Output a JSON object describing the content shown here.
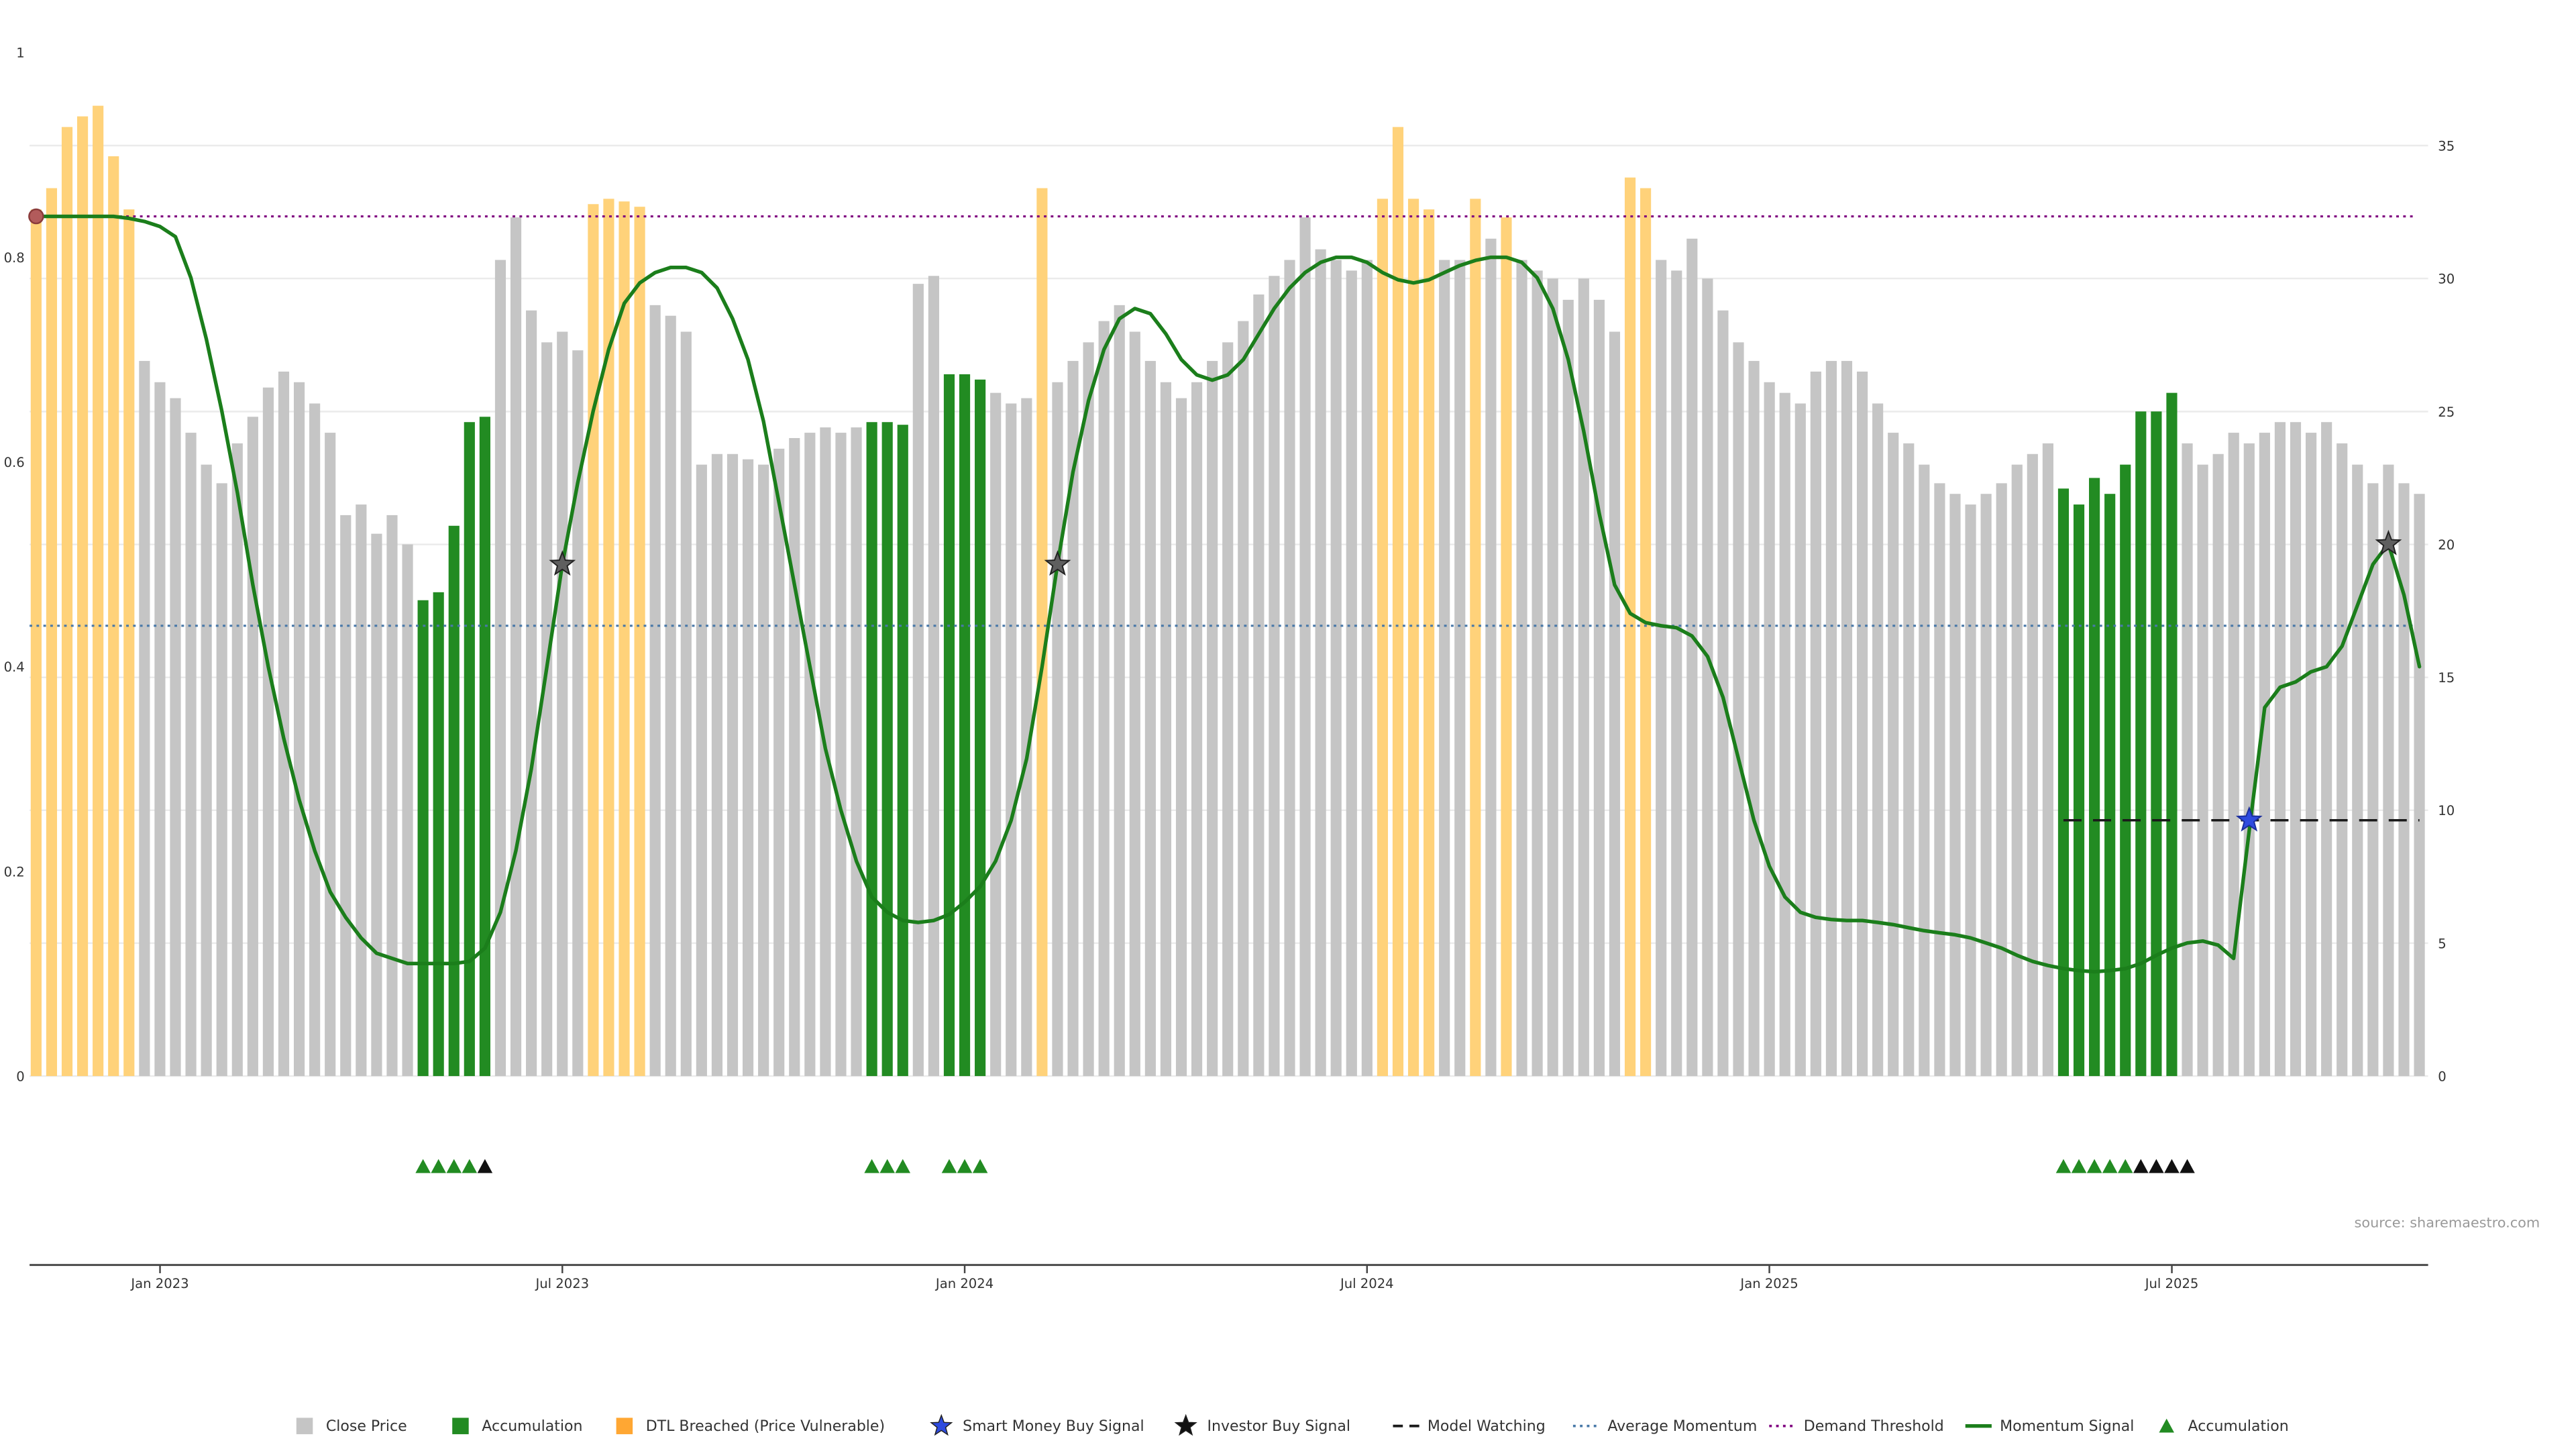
{
  "source_text": "source: sharemaestro.com",
  "colors": {
    "close_bar": "#c5c5c5",
    "accum_bar": "#228B22",
    "dtl_bar": "#FFD27A",
    "dtl_legend": "#FFA733",
    "momentum_line": "#1b7e1b",
    "demand_threshold": "#800080",
    "average_momentum": "#4878A8",
    "model_watching": "#1a1a1a",
    "investor_star": "#5f5f5f",
    "investor_star_legend": "#111111",
    "smart_money_star": "#2e4bdf",
    "signal_start_dot": "#b25b5b",
    "black_triangle": "#111111",
    "grid": "#ebebeb",
    "axis_text": "#333333",
    "axis_line": "#444444",
    "source_color": "#999999",
    "legend_text": "#333333"
  },
  "chart_data": {
    "type": "bar+line",
    "title": "",
    "x_tick_labels": [
      {
        "index": 8,
        "label": "Jan 2023"
      },
      {
        "index": 34,
        "label": "Jul 2023"
      },
      {
        "index": 60,
        "label": "Jan 2024"
      },
      {
        "index": 86,
        "label": "Jul 2024"
      },
      {
        "index": 112,
        "label": "Jan 2025"
      },
      {
        "index": 138,
        "label": "Jul 2025"
      }
    ],
    "left_axis": {
      "ticks": [
        0,
        0.2,
        0.4,
        0.6,
        0.8,
        1
      ],
      "range": [
        0,
        1
      ]
    },
    "right_axis": {
      "ticks": [
        0,
        5,
        10,
        15,
        20,
        25,
        30,
        35
      ],
      "range": [
        0,
        38.5
      ]
    },
    "bars": {
      "price": [
        32.6,
        33.4,
        35.7,
        36.1,
        36.5,
        34.6,
        32.6,
        26.9,
        26.1,
        25.5,
        24.2,
        23.0,
        22.3,
        23.8,
        24.8,
        25.9,
        26.5,
        26.1,
        25.3,
        24.2,
        21.1,
        21.5,
        20.4,
        21.1,
        20.0,
        17.9,
        18.2,
        20.7,
        24.6,
        24.8,
        30.7,
        32.3,
        28.8,
        27.6,
        28.0,
        27.3,
        32.8,
        33.0,
        32.9,
        32.7,
        29.0,
        28.6,
        28.0,
        23.0,
        23.4,
        23.4,
        23.2,
        23.0,
        23.6,
        24.0,
        24.2,
        24.4,
        24.2,
        24.4,
        24.6,
        24.6,
        24.5,
        29.8,
        30.1,
        26.4,
        26.4,
        26.2,
        25.7,
        25.3,
        25.5,
        33.4,
        26.1,
        26.9,
        27.6,
        28.4,
        29.0,
        28.0,
        26.9,
        26.1,
        25.5,
        26.1,
        26.9,
        27.6,
        28.4,
        29.4,
        30.1,
        30.7,
        32.3,
        31.1,
        30.7,
        30.3,
        30.7,
        33.0,
        35.7,
        33.0,
        32.6,
        30.7,
        30.7,
        33.0,
        31.5,
        32.3,
        30.7,
        30.3,
        30.0,
        29.2,
        30.0,
        29.2,
        28.0,
        33.8,
        33.4,
        30.7,
        30.3,
        31.5,
        30.0,
        28.8,
        27.6,
        26.9,
        26.1,
        25.7,
        25.3,
        26.5,
        26.9,
        26.9,
        26.5,
        25.3,
        24.2,
        23.8,
        23.0,
        22.3,
        21.9,
        21.5,
        21.9,
        22.3,
        23.0,
        23.4,
        23.8,
        22.1,
        21.5,
        22.5,
        21.9,
        23.0,
        25.0,
        25.0,
        25.7,
        23.8,
        23.0,
        23.4,
        24.2,
        23.8,
        24.2,
        24.6,
        24.6,
        24.2,
        24.6,
        23.8,
        23.0,
        22.3,
        23.0,
        22.3,
        21.9
      ],
      "accum_indices": [
        25,
        26,
        27,
        28,
        29,
        54,
        55,
        56,
        59,
        60,
        61,
        131,
        132,
        133,
        134,
        135,
        136,
        137,
        138
      ],
      "dtl_indices": [
        0,
        1,
        2,
        3,
        4,
        5,
        6,
        36,
        37,
        38,
        39,
        65,
        87,
        88,
        89,
        90,
        93,
        95,
        103,
        104
      ],
      "bar_type_legend": {
        "close": "Close Price",
        "accum": "Accumulation",
        "dtl": "DTL Breached (Price Vulnerable)"
      }
    },
    "momentum": [
      0.84,
      0.84,
      0.84,
      0.84,
      0.84,
      0.84,
      0.838,
      0.835,
      0.83,
      0.82,
      0.78,
      0.72,
      0.65,
      0.57,
      0.48,
      0.4,
      0.33,
      0.27,
      0.22,
      0.18,
      0.155,
      0.135,
      0.12,
      0.115,
      0.11,
      0.11,
      0.11,
      0.11,
      0.112,
      0.125,
      0.16,
      0.22,
      0.3,
      0.4,
      0.5,
      0.58,
      0.65,
      0.71,
      0.755,
      0.775,
      0.785,
      0.79,
      0.79,
      0.785,
      0.77,
      0.74,
      0.7,
      0.64,
      0.56,
      0.48,
      0.4,
      0.32,
      0.26,
      0.21,
      0.175,
      0.16,
      0.152,
      0.15,
      0.152,
      0.158,
      0.17,
      0.185,
      0.21,
      0.25,
      0.31,
      0.4,
      0.5,
      0.59,
      0.66,
      0.71,
      0.74,
      0.75,
      0.745,
      0.725,
      0.7,
      0.685,
      0.68,
      0.685,
      0.7,
      0.725,
      0.75,
      0.77,
      0.785,
      0.795,
      0.8,
      0.8,
      0.795,
      0.785,
      0.778,
      0.775,
      0.778,
      0.785,
      0.792,
      0.797,
      0.8,
      0.8,
      0.795,
      0.78,
      0.75,
      0.7,
      0.63,
      0.55,
      0.48,
      0.452,
      0.443,
      0.44,
      0.438,
      0.43,
      0.41,
      0.37,
      0.31,
      0.25,
      0.205,
      0.175,
      0.16,
      0.155,
      0.153,
      0.152,
      0.152,
      0.15,
      0.148,
      0.145,
      0.142,
      0.14,
      0.138,
      0.135,
      0.13,
      0.125,
      0.118,
      0.112,
      0.108,
      0.105,
      0.103,
      0.102,
      0.103,
      0.105,
      0.11,
      0.118,
      0.125,
      0.13,
      0.132,
      0.128,
      0.115,
      0.24,
      0.36,
      0.38,
      0.385,
      0.395,
      0.4,
      0.42,
      0.46,
      0.5,
      0.52,
      0.47,
      0.4
    ],
    "demand_threshold": 0.84,
    "average_momentum": 0.44,
    "model_watching": {
      "value": 0.25,
      "start_index": 131,
      "end_index": 154
    },
    "momentum_start_dot": {
      "index": 0,
      "value": 0.84
    },
    "investor_buy_signals": [
      {
        "index": 34,
        "value": 0.5
      },
      {
        "index": 66,
        "value": 0.5
      },
      {
        "index": 152,
        "value": 0.52
      }
    ],
    "smart_money_buy_signals": [
      {
        "index": 143,
        "value": 0.25
      }
    ],
    "accumulation_markers": {
      "green": [
        25,
        26,
        27,
        28,
        54,
        55,
        56,
        59,
        60,
        61,
        131,
        132,
        133,
        134,
        135
      ],
      "black": [
        29,
        136,
        137,
        138,
        139
      ]
    }
  },
  "legend": {
    "items": [
      {
        "marker": "square",
        "color_key": "close_bar",
        "label": "Close Price"
      },
      {
        "marker": "square",
        "color_key": "accum_bar",
        "label": "Accumulation"
      },
      {
        "marker": "square",
        "color_key": "dtl_legend",
        "label": "DTL Breached (Price Vulnerable)"
      },
      {
        "marker": "star",
        "color_key": "smart_money_star",
        "label": "Smart Money Buy Signal"
      },
      {
        "marker": "star",
        "color_key": "investor_star_legend",
        "label": "Investor Buy Signal"
      },
      {
        "marker": "dashed",
        "color_key": "model_watching",
        "label": "Model Watching"
      },
      {
        "marker": "dotted",
        "color_key": "average_momentum",
        "label": "Average Momentum"
      },
      {
        "marker": "dotted",
        "color_key": "demand_threshold",
        "label": "Demand Threshold"
      },
      {
        "marker": "line",
        "color_key": "momentum_line",
        "label": "Momentum Signal"
      },
      {
        "marker": "triangle",
        "color_key": "accum_bar",
        "label": "Accumulation"
      }
    ]
  }
}
